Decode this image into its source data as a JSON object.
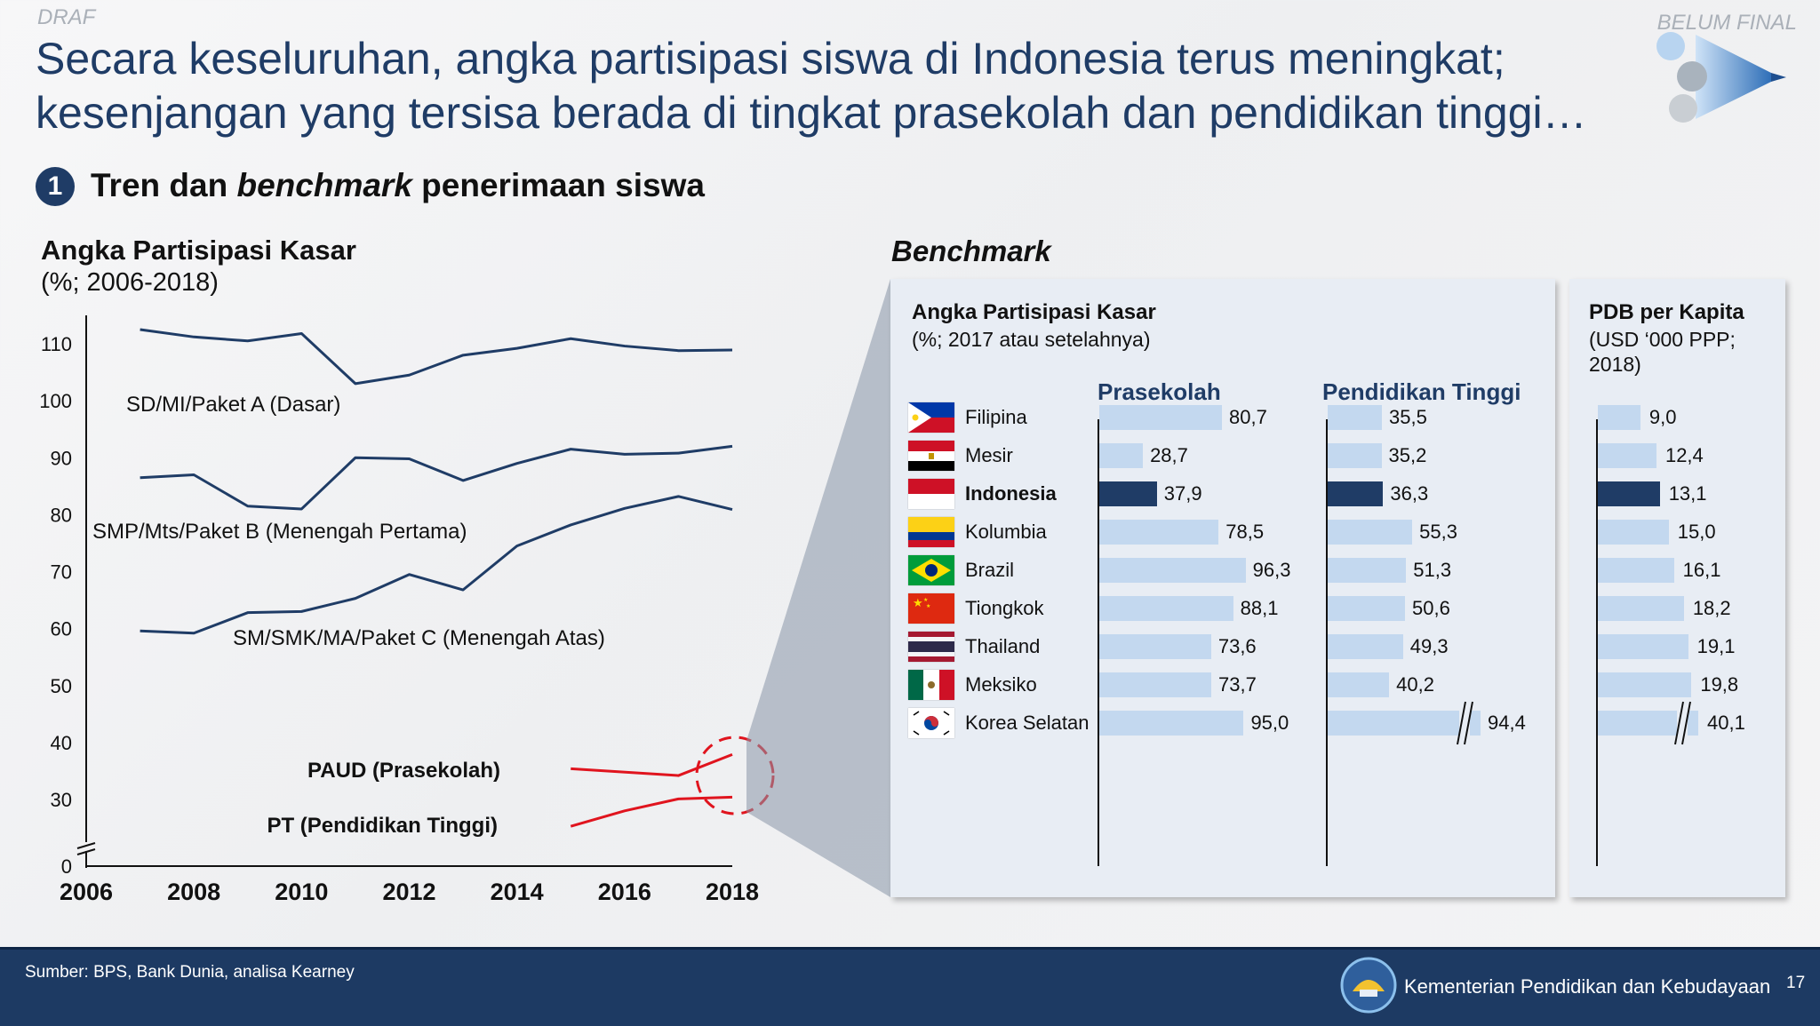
{
  "header": {
    "draft_label": "DRAF",
    "final_label": "BELUM FINAL",
    "title_line1": "Secara keseluruhan, angka partisipasi siswa di Indonesia terus meningkat;",
    "title_line2": "kesenjangan yang tersisa berada di tingkat prasekolah dan pendidikan tinggi…"
  },
  "section": {
    "number": "1",
    "title_pre": "Tren dan ",
    "title_italic": "benchmark",
    "title_post": " penerimaan siswa"
  },
  "benchmark_label": "Benchmark",
  "panel1": {
    "title": "Angka Partisipasi Kasar",
    "subtitle": "(%; 2017 atau setelahnya)",
    "col1": "Prasekolah",
    "col2": "Pendidikan Tinggi"
  },
  "panel2": {
    "title": "PDB per Kapita",
    "subtitle_l1": "(USD ‘000 PPP;",
    "subtitle_l2": "2018)"
  },
  "chart_data": [
    {
      "type": "line",
      "title": "Angka Partisipasi Kasar",
      "subtitle": "(%; 2006-2018)",
      "xlabel": "",
      "ylabel": "",
      "x_ticks": [
        "2006",
        "2008",
        "2010",
        "2012",
        "2014",
        "2016",
        "2018"
      ],
      "y_ticks": [
        "0",
        "30",
        "40",
        "50",
        "60",
        "70",
        "80",
        "90",
        "100",
        "110"
      ],
      "ylim": [
        0,
        115
      ],
      "axis_break": true,
      "series": [
        {
          "name": "SD/MI/Paket A (Dasar)",
          "color": "#1f3c66",
          "label_bold": false,
          "x": [
            2007,
            2008,
            2009,
            2010,
            2011,
            2012,
            2013,
            2014,
            2015,
            2016,
            2017,
            2018
          ],
          "y": [
            112.5,
            111.2,
            110.5,
            111.8,
            103,
            104.5,
            108,
            109.2,
            110.9,
            109.6,
            108.8,
            108.9
          ]
        },
        {
          "name": "SMP/Mts/Paket B (Menengah Pertama)",
          "color": "#1f3c66",
          "label_bold": false,
          "x": [
            2007,
            2008,
            2009,
            2010,
            2011,
            2012,
            2013,
            2014,
            2015,
            2016,
            2017,
            2018
          ],
          "y": [
            86.5,
            87,
            81.5,
            81,
            90,
            89.8,
            86,
            89,
            91.5,
            90.6,
            90.8,
            92
          ]
        },
        {
          "name": "SM/SMK/MA/Paket C (Menengah Atas)",
          "color": "#1f3c66",
          "label_bold": false,
          "x": [
            2007,
            2008,
            2009,
            2010,
            2011,
            2012,
            2013,
            2014,
            2015,
            2016,
            2017,
            2018
          ],
          "y": [
            59.6,
            59.2,
            62.8,
            63,
            65.3,
            69.5,
            66.8,
            74.5,
            78.2,
            81.1,
            83.2,
            80.9
          ]
        },
        {
          "name": "PAUD (Prasekolah)",
          "color": "#e0141e",
          "label_bold": true,
          "x": [
            2015,
            2017,
            2018
          ],
          "y": [
            35.4,
            34.2,
            37.9
          ]
        },
        {
          "name": "PT (Pendidikan Tinggi)",
          "color": "#e0141e",
          "label_bold": true,
          "x": [
            2015,
            2016,
            2017,
            2018
          ],
          "y": [
            25.3,
            28,
            30.1,
            30.4
          ]
        }
      ]
    },
    {
      "type": "bar",
      "orientation": "horizontal",
      "title": "Angka Partisipasi Kasar",
      "subtitle": "(%; 2017 atau setelahnya)",
      "categories": [
        "Filipina",
        "Mesir",
        "Indonesia",
        "Kolumbia",
        "Brazil",
        "Tiongkok",
        "Thailand",
        "Meksiko",
        "Korea Selatan"
      ],
      "highlight": "Indonesia",
      "series": [
        {
          "name": "Prasekolah",
          "values": [
            80.7,
            28.7,
            37.9,
            78.5,
            96.3,
            88.1,
            73.6,
            73.7,
            95.0
          ],
          "labels": [
            "80,7",
            "28,7",
            "37,9",
            "78,5",
            "96,3",
            "88,1",
            "73,6",
            "73,7",
            "95,0"
          ],
          "axis_break_index": null
        },
        {
          "name": "Pendidikan Tinggi",
          "values": [
            35.5,
            35.2,
            36.3,
            55.3,
            51.3,
            50.6,
            49.3,
            40.2,
            94.4
          ],
          "labels": [
            "35,5",
            "35,2",
            "36,3",
            "55,3",
            "51,3",
            "50,6",
            "49,3",
            "40,2",
            "94,4"
          ],
          "axis_break_index": 8
        }
      ]
    },
    {
      "type": "bar",
      "orientation": "horizontal",
      "title": "PDB per Kapita",
      "subtitle": "(USD ‘000 PPP; 2018)",
      "categories": [
        "Filipina",
        "Mesir",
        "Indonesia",
        "Kolumbia",
        "Brazil",
        "Tiongkok",
        "Thailand",
        "Meksiko",
        "Korea Selatan"
      ],
      "highlight": "Indonesia",
      "series": [
        {
          "name": "",
          "values": [
            9.0,
            12.4,
            13.1,
            15.0,
            16.1,
            18.2,
            19.1,
            19.8,
            40.1
          ],
          "labels": [
            "9,0",
            "12,4",
            "13,1",
            "15,0",
            "16,1",
            "18,2",
            "19,1",
            "19,8",
            "40,1"
          ],
          "axis_break_index": 8
        }
      ]
    }
  ],
  "countries": [
    {
      "name": "Filipina",
      "flag_icon": "philippines-flag-icon"
    },
    {
      "name": "Mesir",
      "flag_icon": "egypt-flag-icon"
    },
    {
      "name": "Indonesia",
      "flag_icon": "indonesia-flag-icon"
    },
    {
      "name": "Kolumbia",
      "flag_icon": "colombia-flag-icon"
    },
    {
      "name": "Brazil",
      "flag_icon": "brazil-flag-icon"
    },
    {
      "name": "Tiongkok",
      "flag_icon": "china-flag-icon"
    },
    {
      "name": "Thailand",
      "flag_icon": "thailand-flag-icon"
    },
    {
      "name": "Meksiko",
      "flag_icon": "mexico-flag-icon"
    },
    {
      "name": "Korea Selatan",
      "flag_icon": "south-korea-flag-icon"
    }
  ],
  "colors": {
    "navy": "#1f3c66",
    "red": "#e0141e",
    "bar_light": "#c3d8ef",
    "panel_bg": "#e8edf4"
  },
  "footer": {
    "source": "Sumber: BPS, Bank Dunia, analisa Kearney",
    "ministry": "Kementerian Pendidikan dan Kebudayaan",
    "page": "17"
  }
}
